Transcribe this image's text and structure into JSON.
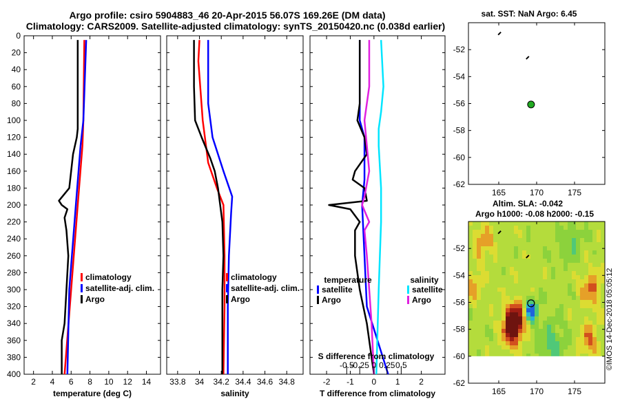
{
  "header": {
    "line1": "Argo profile: csiro 5904883_46 20-Apr-2015 56.07S 169.26E (DM data)",
    "line2": "Climatology: CARS2009. Satellite-adjusted climatology: synTS_20150420.nc (0.038d earlier)"
  },
  "colors": {
    "climatology": "#ff0000",
    "satellite": "#0000ff",
    "argo": "#000000",
    "sal_satellite": "#00e5ff",
    "sal_argo": "#e020e0",
    "marker": "#22aa22"
  },
  "credit": "©IMOS 14-Dec-2018 05:05:12",
  "chart_data": [
    {
      "id": "temperature",
      "type": "line",
      "xlabel": "temperature (deg C)",
      "ylabel": "depth",
      "xlim": [
        1,
        15.5
      ],
      "ylim": [
        0,
        400
      ],
      "x_ticks": [
        2,
        4,
        6,
        8,
        10,
        12,
        14
      ],
      "x_tick_labels": [
        "2",
        "4",
        "6",
        "8",
        "10",
        "12",
        "14"
      ],
      "y_ticks": [
        0,
        20,
        40,
        60,
        80,
        100,
        120,
        140,
        160,
        180,
        200,
        220,
        240,
        260,
        280,
        300,
        320,
        340,
        360,
        380,
        400
      ],
      "y_tick_labels": [
        "0",
        "20",
        "40",
        "60",
        "80",
        "100",
        "120",
        "140",
        "160",
        "180",
        "200",
        "220",
        "240",
        "260",
        "280",
        "300",
        "320",
        "340",
        "360",
        "380",
        "400"
      ],
      "series": [
        {
          "name": "climatology",
          "color": "#ff0000",
          "depth": [
            5,
            100,
            130,
            200,
            300,
            400
          ],
          "values": [
            7.4,
            7.3,
            7.2,
            6.7,
            6.0,
            5.3
          ]
        },
        {
          "name": "satellite-adj. clim.",
          "color": "#0000ff",
          "depth": [
            5,
            100,
            130,
            200,
            300,
            400
          ],
          "values": [
            7.6,
            7.3,
            7.0,
            6.5,
            5.8,
            5.6
          ]
        },
        {
          "name": "Argo",
          "color": "#000000",
          "depth": [
            5,
            110,
            120,
            140,
            160,
            180,
            195,
            200,
            205,
            215,
            230,
            260,
            300,
            340,
            360,
            400
          ],
          "values": [
            6.7,
            6.7,
            6.6,
            6.2,
            6.0,
            5.8,
            4.7,
            5.0,
            5.6,
            5.3,
            5.5,
            5.7,
            5.5,
            5.3,
            5.0,
            5.0
          ]
        }
      ],
      "legend": {
        "position": "lower-center",
        "entries": [
          "climatology",
          "satellite-adj. clim.",
          "Argo"
        ]
      }
    },
    {
      "id": "salinity",
      "type": "line",
      "xlabel": "salinity",
      "xlim": [
        33.7,
        34.95
      ],
      "ylim": [
        0,
        400
      ],
      "x_ticks": [
        33.8,
        34.0,
        34.2,
        34.4,
        34.6,
        34.8
      ],
      "x_tick_labels": [
        "33.8",
        "34",
        "34.2",
        "34.4",
        "34.6",
        "34.8"
      ],
      "series": [
        {
          "name": "climatology",
          "color": "#ff0000",
          "depth": [
            5,
            30,
            100,
            150,
            180,
            200,
            260,
            320,
            400
          ],
          "values": [
            34.0,
            33.99,
            34.03,
            34.08,
            34.16,
            34.22,
            34.23,
            34.23,
            34.22
          ]
        },
        {
          "name": "satellite-adj. clim.",
          "color": "#0000ff",
          "depth": [
            5,
            80,
            120,
            160,
            190,
            210,
            260,
            320,
            400
          ],
          "values": [
            34.08,
            34.08,
            34.12,
            34.22,
            34.3,
            34.29,
            34.27,
            34.26,
            34.26
          ]
        },
        {
          "name": "Argo",
          "color": "#000000",
          "depth": [
            5,
            60,
            100,
            120,
            145,
            160,
            180,
            200,
            220,
            260,
            300,
            340,
            400
          ],
          "values": [
            33.95,
            33.95,
            33.96,
            34.02,
            34.1,
            34.14,
            34.17,
            34.19,
            34.21,
            34.22,
            34.21,
            34.21,
            34.21
          ]
        }
      ],
      "legend": {
        "position": "lower-right",
        "entries": [
          "climatology",
          "satellite-adj. clim.",
          "Argo"
        ]
      }
    },
    {
      "id": "differences",
      "type": "line",
      "xlabel": "T difference from climatology",
      "top_axis_label": "S difference from climatology",
      "xlim": [
        -2.7,
        3.0
      ],
      "ylim": [
        0,
        400
      ],
      "x_ticks": [
        -2,
        -1,
        0,
        1,
        2
      ],
      "x_tick_labels": [
        "-2",
        "-1",
        "0",
        "1",
        "2"
      ],
      "s_ticks_in_t_units": [
        -1.15,
        -0.6,
        0.0,
        0.55,
        1.15
      ],
      "s_tick_labels": [
        "-0.5",
        "-0.25",
        "0",
        "0.25",
        "0.5"
      ],
      "series": [
        {
          "name": "temperature satellite",
          "color": "#0000ff",
          "depth": [
            5,
            100,
            120,
            140,
            170,
            200,
            260,
            320,
            400
          ],
          "values": [
            -0.6,
            -0.6,
            -0.4,
            -0.4,
            -0.4,
            -0.5,
            -0.4,
            -0.3,
            0.6
          ]
        },
        {
          "name": "temperature Argo",
          "color": "#000000",
          "depth": [
            5,
            80,
            100,
            120,
            140,
            160,
            170,
            180,
            195,
            200,
            205,
            220,
            230,
            260,
            300,
            340,
            400
          ],
          "values": [
            -0.6,
            -0.6,
            -0.7,
            -0.4,
            -0.3,
            -0.8,
            -0.9,
            -0.4,
            -0.3,
            -1.9,
            -1.0,
            -0.6,
            -0.8,
            -0.8,
            -0.6,
            -0.3,
            0.0
          ]
        },
        {
          "name": "salinity satellite",
          "color": "#00e5ff",
          "depth": [
            5,
            60,
            90,
            110,
            130,
            180,
            220,
            300,
            400
          ],
          "values": [
            0.3,
            0.4,
            0.3,
            0.2,
            0.2,
            0.3,
            0.3,
            0.2,
            0.1
          ]
        },
        {
          "name": "salinity Argo",
          "color": "#e020e0",
          "depth": [
            5,
            60,
            100,
            130,
            160,
            190,
            200,
            220,
            230,
            260,
            300,
            340,
            400
          ],
          "values": [
            -0.2,
            -0.2,
            -0.4,
            -0.3,
            -0.2,
            -0.4,
            -0.5,
            -0.2,
            -0.4,
            -0.3,
            -0.2,
            -0.1,
            0.0
          ]
        }
      ],
      "legend": {
        "position": "lower",
        "temperature_heading": "temperature",
        "salinity_heading": "salinity",
        "entries": [
          "satellite",
          "Argo",
          "satellite",
          "Argo"
        ]
      }
    },
    {
      "id": "sst_map",
      "type": "scatter",
      "title": "sat. SST: NaN Argo: 6.45",
      "xlim": [
        161,
        179
      ],
      "ylim": [
        -62,
        -50
      ],
      "x_ticks": [
        165,
        170,
        175
      ],
      "x_tick_labels": [
        "165",
        "170",
        "175"
      ],
      "y_ticks": [
        -52,
        -54,
        -56,
        -58,
        -60,
        -62
      ],
      "y_tick_labels": [
        "-52",
        "-54",
        "-56",
        "-58",
        "-60",
        "-62"
      ],
      "points": [
        {
          "name": "argo-position",
          "x": 169.26,
          "y": -56.07,
          "color": "#22aa22"
        },
        {
          "name": "track-mark-1",
          "x": 165.1,
          "y": -50.8,
          "color": "#000000"
        },
        {
          "name": "track-mark-2",
          "x": 168.8,
          "y": -52.6,
          "color": "#000000"
        }
      ]
    },
    {
      "id": "sla_map",
      "type": "heatmap",
      "title": "Altim. SLA: -0.042",
      "subtitle": "Argo h1000: -0.08 h2000: -0.15",
      "xlim": [
        161,
        179
      ],
      "ylim": [
        -62,
        -50
      ],
      "x_ticks": [
        165,
        170,
        175
      ],
      "x_tick_labels": [
        "165",
        "170",
        "175"
      ],
      "y_ticks": [
        -52,
        -54,
        -56,
        -58,
        -60,
        -62
      ],
      "y_tick_labels": [
        "-52",
        "-54",
        "-56",
        "-58",
        "-60",
        "-62"
      ],
      "data_lat_range": [
        -60,
        -50
      ],
      "colormap": [
        "#1e64dc",
        "#2ab4d2",
        "#50c878",
        "#8cd23c",
        "#b4dc3c",
        "#dcdc32",
        "#e6a028",
        "#d2501e",
        "#a01e14",
        "#6e140f"
      ],
      "anomalies": [
        {
          "lon": 167.2,
          "lat": -57.3,
          "amp": 0.55,
          "sigma": 0.9
        },
        {
          "lon": 166.6,
          "lat": -58.2,
          "amp": 0.35,
          "sigma": 0.8
        },
        {
          "lon": 169.3,
          "lat": -56.6,
          "amp": -0.45,
          "sigma": 0.6
        },
        {
          "lon": 177.2,
          "lat": -55.0,
          "amp": 0.25,
          "sigma": 1.0
        },
        {
          "lon": 177.0,
          "lat": -58.8,
          "amp": 0.25,
          "sigma": 0.9
        },
        {
          "lon": 163.0,
          "lat": -51.5,
          "amp": 0.2,
          "sigma": 1.0
        },
        {
          "lon": 172.0,
          "lat": -59.0,
          "amp": -0.2,
          "sigma": 1.2
        },
        {
          "lon": 174.5,
          "lat": -51.5,
          "amp": -0.15,
          "sigma": 1.2
        },
        {
          "lon": 161.8,
          "lat": -54.8,
          "amp": 0.18,
          "sigma": 0.8
        }
      ],
      "points": [
        {
          "name": "argo-position",
          "x": 169.26,
          "y": -56.07,
          "color": "none"
        },
        {
          "name": "track-mark-1",
          "x": 165.1,
          "y": -50.8,
          "color": "#000000"
        },
        {
          "name": "track-mark-2",
          "x": 168.8,
          "y": -52.6,
          "color": "#000000"
        }
      ]
    }
  ]
}
